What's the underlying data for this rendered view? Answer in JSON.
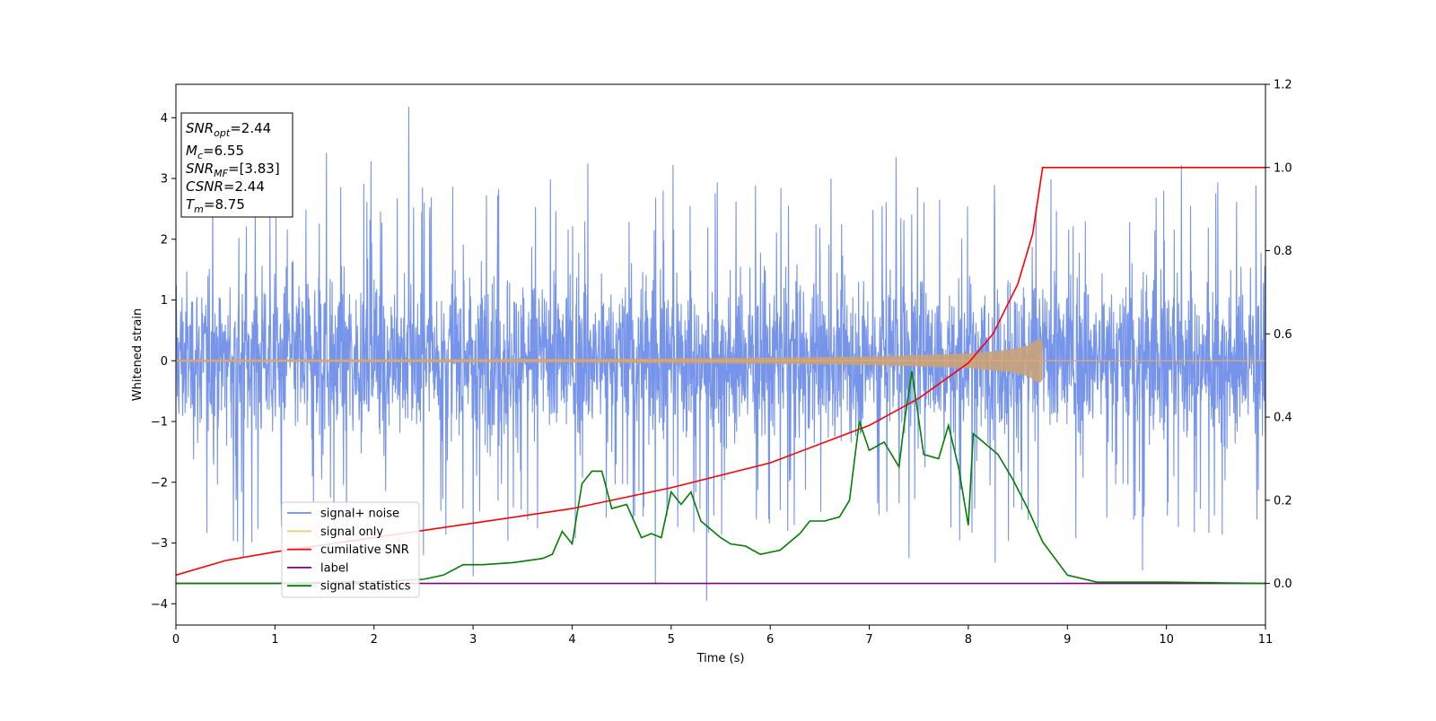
{
  "chart_data": {
    "type": "line",
    "title": "",
    "xlabel": "Time (s)",
    "ylabel": "Whitened strain",
    "xlim": [
      0,
      11
    ],
    "ylim": [
      -4.35,
      4.55
    ],
    "ylim_right": [
      -0.1,
      1.2
    ],
    "xticks": [
      0,
      1,
      2,
      3,
      4,
      5,
      6,
      7,
      8,
      9,
      10,
      11
    ],
    "xtick_labels": [
      "0",
      "1",
      "2",
      "3",
      "4",
      "5",
      "6",
      "7",
      "8",
      "9",
      "10",
      "11"
    ],
    "yticks": [
      4,
      3,
      2,
      1,
      0,
      -1,
      -2,
      -3,
      -4
    ],
    "ytick_labels": [
      "4",
      "3",
      "2",
      "1",
      "0",
      "−1",
      "−2",
      "−3",
      "−4"
    ],
    "yticks_right": [
      1.2,
      1.0,
      0.8,
      0.6,
      0.4,
      0.2,
      0.0
    ],
    "ytick_labels_right": [
      "1.2",
      "1.0",
      "0.8",
      "0.6",
      "0.4",
      "0.2",
      "0.0"
    ],
    "grid": false,
    "legend_position": "lower-left",
    "legend": [
      {
        "label": "signal+ noise",
        "color": "#6f8ee8"
      },
      {
        "label": "signal only",
        "color": "#f5c97a"
      },
      {
        "label": "cumilative SNR",
        "color": "#ff0000"
      },
      {
        "label": "label",
        "color": "#800080"
      },
      {
        "label": "signal statistics",
        "color": "#007f00"
      }
    ],
    "annotation": {
      "lines": [
        {
          "base": "SNR",
          "sub": "opt",
          "rest": "=2.44"
        },
        {
          "base": "M",
          "sub": "c",
          "rest": "=6.55"
        },
        {
          "base": "SNR",
          "sub": "MF",
          "rest": "=[3.83]"
        },
        {
          "base": "CSNR",
          "sub": "",
          "rest": "=2.44"
        },
        {
          "base": "T",
          "sub": "m",
          "rest": "=8.75"
        }
      ]
    },
    "series": [
      {
        "name": "signal+ noise",
        "axis": "left",
        "color": "#6f8ee8",
        "x_range": [
          0,
          11
        ],
        "typical_band": [
          -1.45,
          1.55
        ],
        "spike_peaks": [
          {
            "x": 2.35,
            "y": 4.18
          },
          {
            "x": 1.52,
            "y": 3.42
          },
          {
            "x": 1.97,
            "y": 3.28
          },
          {
            "x": 4.16,
            "y": 3.25
          },
          {
            "x": 5.02,
            "y": 3.22
          },
          {
            "x": 7.27,
            "y": 3.35
          },
          {
            "x": 10.15,
            "y": 3.22
          },
          {
            "x": 5.36,
            "y": -3.95
          },
          {
            "x": 4.84,
            "y": -3.68
          },
          {
            "x": 3.0,
            "y": -3.55
          },
          {
            "x": 8.27,
            "y": -3.32
          },
          {
            "x": 9.76,
            "y": -3.45
          },
          {
            "x": 0.68,
            "y": -3.25
          },
          {
            "x": 7.4,
            "y": -3.25
          },
          {
            "x": 2.5,
            "y": -3.2
          }
        ]
      },
      {
        "name": "signal only",
        "axis": "left",
        "color": "#e0a870",
        "x_range": [
          0,
          11
        ],
        "merger_time": 8.75,
        "envelope": [
          [
            0,
            0.02
          ],
          [
            4,
            0.03
          ],
          [
            6,
            0.05
          ],
          [
            7,
            0.07
          ],
          [
            8,
            0.12
          ],
          [
            8.4,
            0.18
          ],
          [
            8.6,
            0.25
          ],
          [
            8.72,
            0.38
          ],
          [
            8.75,
            0.3
          ]
        ]
      },
      {
        "name": "cumilative SNR",
        "axis": "right",
        "color": "#ff0000",
        "points": [
          [
            0,
            0.02
          ],
          [
            0.5,
            0.055
          ],
          [
            1,
            0.076
          ],
          [
            2,
            0.11
          ],
          [
            3,
            0.145
          ],
          [
            4,
            0.18
          ],
          [
            5,
            0.23
          ],
          [
            6,
            0.29
          ],
          [
            7,
            0.38
          ],
          [
            7.5,
            0.445
          ],
          [
            8,
            0.53
          ],
          [
            8.25,
            0.6
          ],
          [
            8.5,
            0.72
          ],
          [
            8.65,
            0.84
          ],
          [
            8.75,
            1.0
          ],
          [
            11,
            1.0
          ]
        ]
      },
      {
        "name": "label",
        "axis": "right",
        "color": "#800080",
        "points": [
          [
            0,
            0.0
          ],
          [
            11,
            0.0
          ]
        ]
      },
      {
        "name": "signal statistics",
        "axis": "right",
        "color": "#007f00",
        "points": [
          [
            0,
            0.0
          ],
          [
            1,
            0.0
          ],
          [
            2,
            0.005
          ],
          [
            2.5,
            0.01
          ],
          [
            2.7,
            0.02
          ],
          [
            2.9,
            0.045
          ],
          [
            3.1,
            0.045
          ],
          [
            3.4,
            0.05
          ],
          [
            3.7,
            0.06
          ],
          [
            3.8,
            0.07
          ],
          [
            3.9,
            0.125
          ],
          [
            4.0,
            0.095
          ],
          [
            4.1,
            0.24
          ],
          [
            4.2,
            0.27
          ],
          [
            4.3,
            0.27
          ],
          [
            4.4,
            0.18
          ],
          [
            4.55,
            0.19
          ],
          [
            4.7,
            0.11
          ],
          [
            4.8,
            0.12
          ],
          [
            4.9,
            0.11
          ],
          [
            5.0,
            0.22
          ],
          [
            5.1,
            0.19
          ],
          [
            5.2,
            0.22
          ],
          [
            5.3,
            0.15
          ],
          [
            5.5,
            0.11
          ],
          [
            5.6,
            0.095
          ],
          [
            5.75,
            0.09
          ],
          [
            5.9,
            0.07
          ],
          [
            6.1,
            0.08
          ],
          [
            6.3,
            0.12
          ],
          [
            6.4,
            0.15
          ],
          [
            6.55,
            0.15
          ],
          [
            6.7,
            0.16
          ],
          [
            6.8,
            0.2
          ],
          [
            6.9,
            0.39
          ],
          [
            7.0,
            0.32
          ],
          [
            7.15,
            0.34
          ],
          [
            7.3,
            0.28
          ],
          [
            7.35,
            0.38
          ],
          [
            7.43,
            0.51
          ],
          [
            7.55,
            0.31
          ],
          [
            7.7,
            0.3
          ],
          [
            7.8,
            0.38
          ],
          [
            7.9,
            0.28
          ],
          [
            8.0,
            0.14
          ],
          [
            8.05,
            0.36
          ],
          [
            8.15,
            0.34
          ],
          [
            8.3,
            0.31
          ],
          [
            8.45,
            0.25
          ],
          [
            8.6,
            0.18
          ],
          [
            8.75,
            0.1
          ],
          [
            9.0,
            0.02
          ],
          [
            9.3,
            0.003
          ],
          [
            10.0,
            0.003
          ],
          [
            11,
            0.0
          ]
        ]
      }
    ]
  }
}
